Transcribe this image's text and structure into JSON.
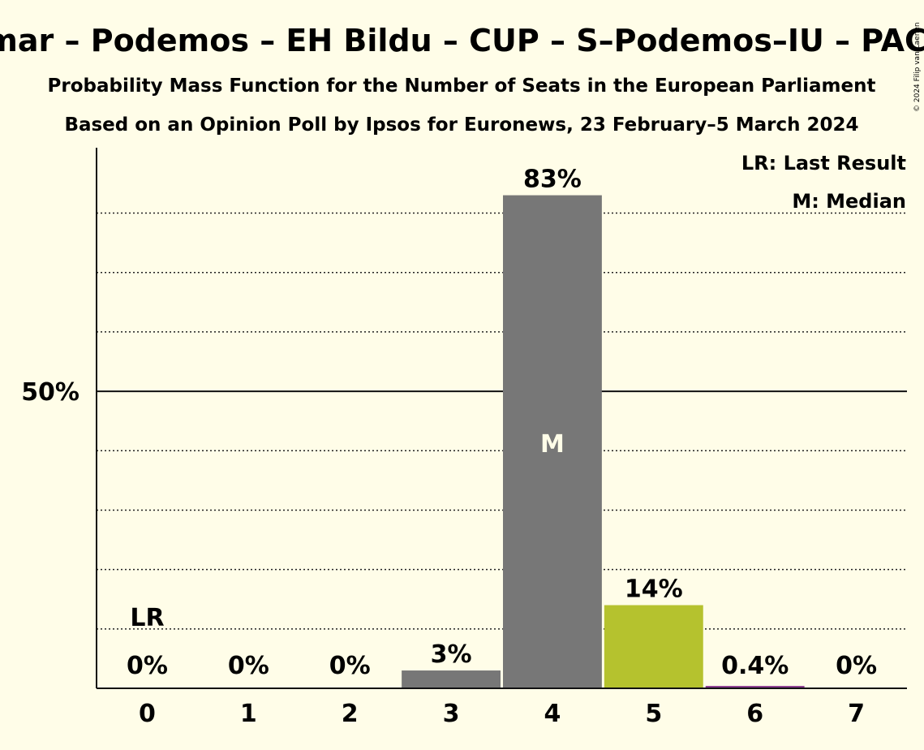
{
  "chart_data": {
    "type": "bar",
    "title": "Sumar – Podemos – EH Bildu – CUP – S–Podemos–IU – PACMA",
    "subtitle_1": "Probability Mass Function for the Number of Seats in the European Parliament",
    "subtitle_2": "Based on an Opinion Poll by Ipsos for Euronews, 23 February–5 March 2024",
    "copyright": "© 2024 Filip van Laenen",
    "categories": [
      "0",
      "1",
      "2",
      "3",
      "4",
      "5",
      "6",
      "7"
    ],
    "values": [
      0,
      0,
      0,
      3,
      83,
      14,
      0.4,
      0
    ],
    "value_labels": [
      "0%",
      "0%",
      "0%",
      "3%",
      "83%",
      "14%",
      "0.4%",
      "0%"
    ],
    "bar_colors": [
      "#777777",
      "#777777",
      "#777777",
      "#777777",
      "#777777",
      "#b5c22e",
      "#8b3a8f",
      "#777777"
    ],
    "ylim": [
      0,
      91
    ],
    "ytick_label": "50%",
    "ytick_value": 50,
    "minor_grid_values": [
      10,
      20,
      30,
      40,
      60,
      70,
      80
    ],
    "grid": true,
    "last_result_index": 0,
    "last_result_label": "LR",
    "median_index": 4,
    "median_label": "M",
    "legend": {
      "position": "top-right",
      "items": [
        "LR: Last Result",
        "M: Median"
      ]
    },
    "xlabel": "",
    "ylabel": ""
  }
}
